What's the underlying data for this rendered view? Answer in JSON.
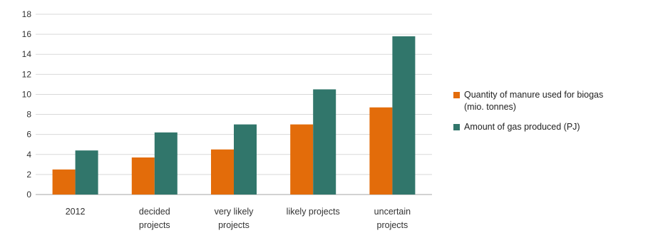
{
  "chart_data": {
    "type": "bar",
    "categories": [
      "2012",
      "decided projects",
      "very likely projects",
      "likely projects",
      "uncertain projects"
    ],
    "category_lines": [
      [
        "2012"
      ],
      [
        "decided",
        "projects"
      ],
      [
        "very likely",
        "projects"
      ],
      [
        "likely projects"
      ],
      [
        "uncertain",
        "projects"
      ]
    ],
    "series": [
      {
        "name": "Quantity of manure used for biogas (mio. tonnes)",
        "legend_lines": [
          "Quantity of manure used for biogas",
          "(mio. tonnes)"
        ],
        "color": "#e36c0a",
        "values": [
          2.5,
          3.7,
          4.5,
          7.0,
          8.7
        ]
      },
      {
        "name": "Amount of gas produced (PJ)",
        "legend_lines": [
          "Amount of gas produced (PJ)"
        ],
        "color": "#31766b",
        "values": [
          4.4,
          6.2,
          7.0,
          10.5,
          15.8
        ]
      }
    ],
    "ylim": [
      0,
      18
    ],
    "yticks": [
      0,
      2,
      4,
      6,
      8,
      10,
      12,
      14,
      16,
      18
    ],
    "grid": true,
    "legend_position": "right",
    "title": "",
    "xlabel": "",
    "ylabel": ""
  }
}
